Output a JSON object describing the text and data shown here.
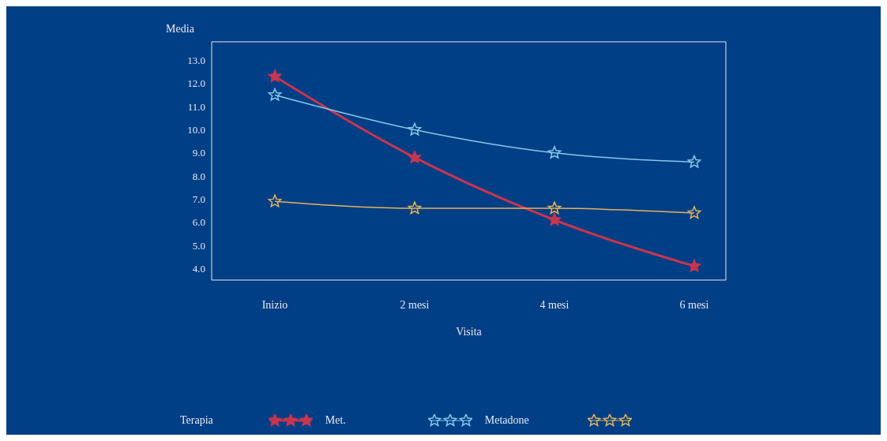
{
  "chart_data": {
    "type": "line",
    "xlabel": "Visita",
    "ylabel": "Media",
    "legend_title": "Terapia",
    "categories": [
      "Inizio",
      "2  mesi",
      "4  mesi",
      "6  mesi"
    ],
    "series": [
      {
        "name": "Met.",
        "color": "#c8354f",
        "values": [
          12.3,
          8.8,
          6.1,
          4.1
        ]
      },
      {
        "name": "Metadone",
        "color": "#86c8e8",
        "values": [
          11.5,
          10.0,
          9.0,
          8.6
        ]
      },
      {
        "color": "#e2b45a",
        "values": [
          6.9,
          6.6,
          6.6,
          6.4
        ]
      }
    ],
    "ylim": [
      3.5,
      13.8
    ],
    "yticks": [
      {
        "value": 4,
        "label": "4.0"
      },
      {
        "value": 5,
        "label": "5.0"
      },
      {
        "value": 6,
        "label": "6.0"
      },
      {
        "value": 7,
        "label": "7.0"
      },
      {
        "value": 8,
        "label": "8.0"
      },
      {
        "value": 9,
        "label": "9.0"
      },
      {
        "value": 10,
        "label": "10.0"
      },
      {
        "value": 11,
        "label": "11.0"
      },
      {
        "value": 12,
        "label": "12.0"
      },
      {
        "value": 13,
        "label": "13.0"
      }
    ],
    "grid": false,
    "legend": "bottom",
    "marker": "star",
    "line_style": "solid"
  }
}
